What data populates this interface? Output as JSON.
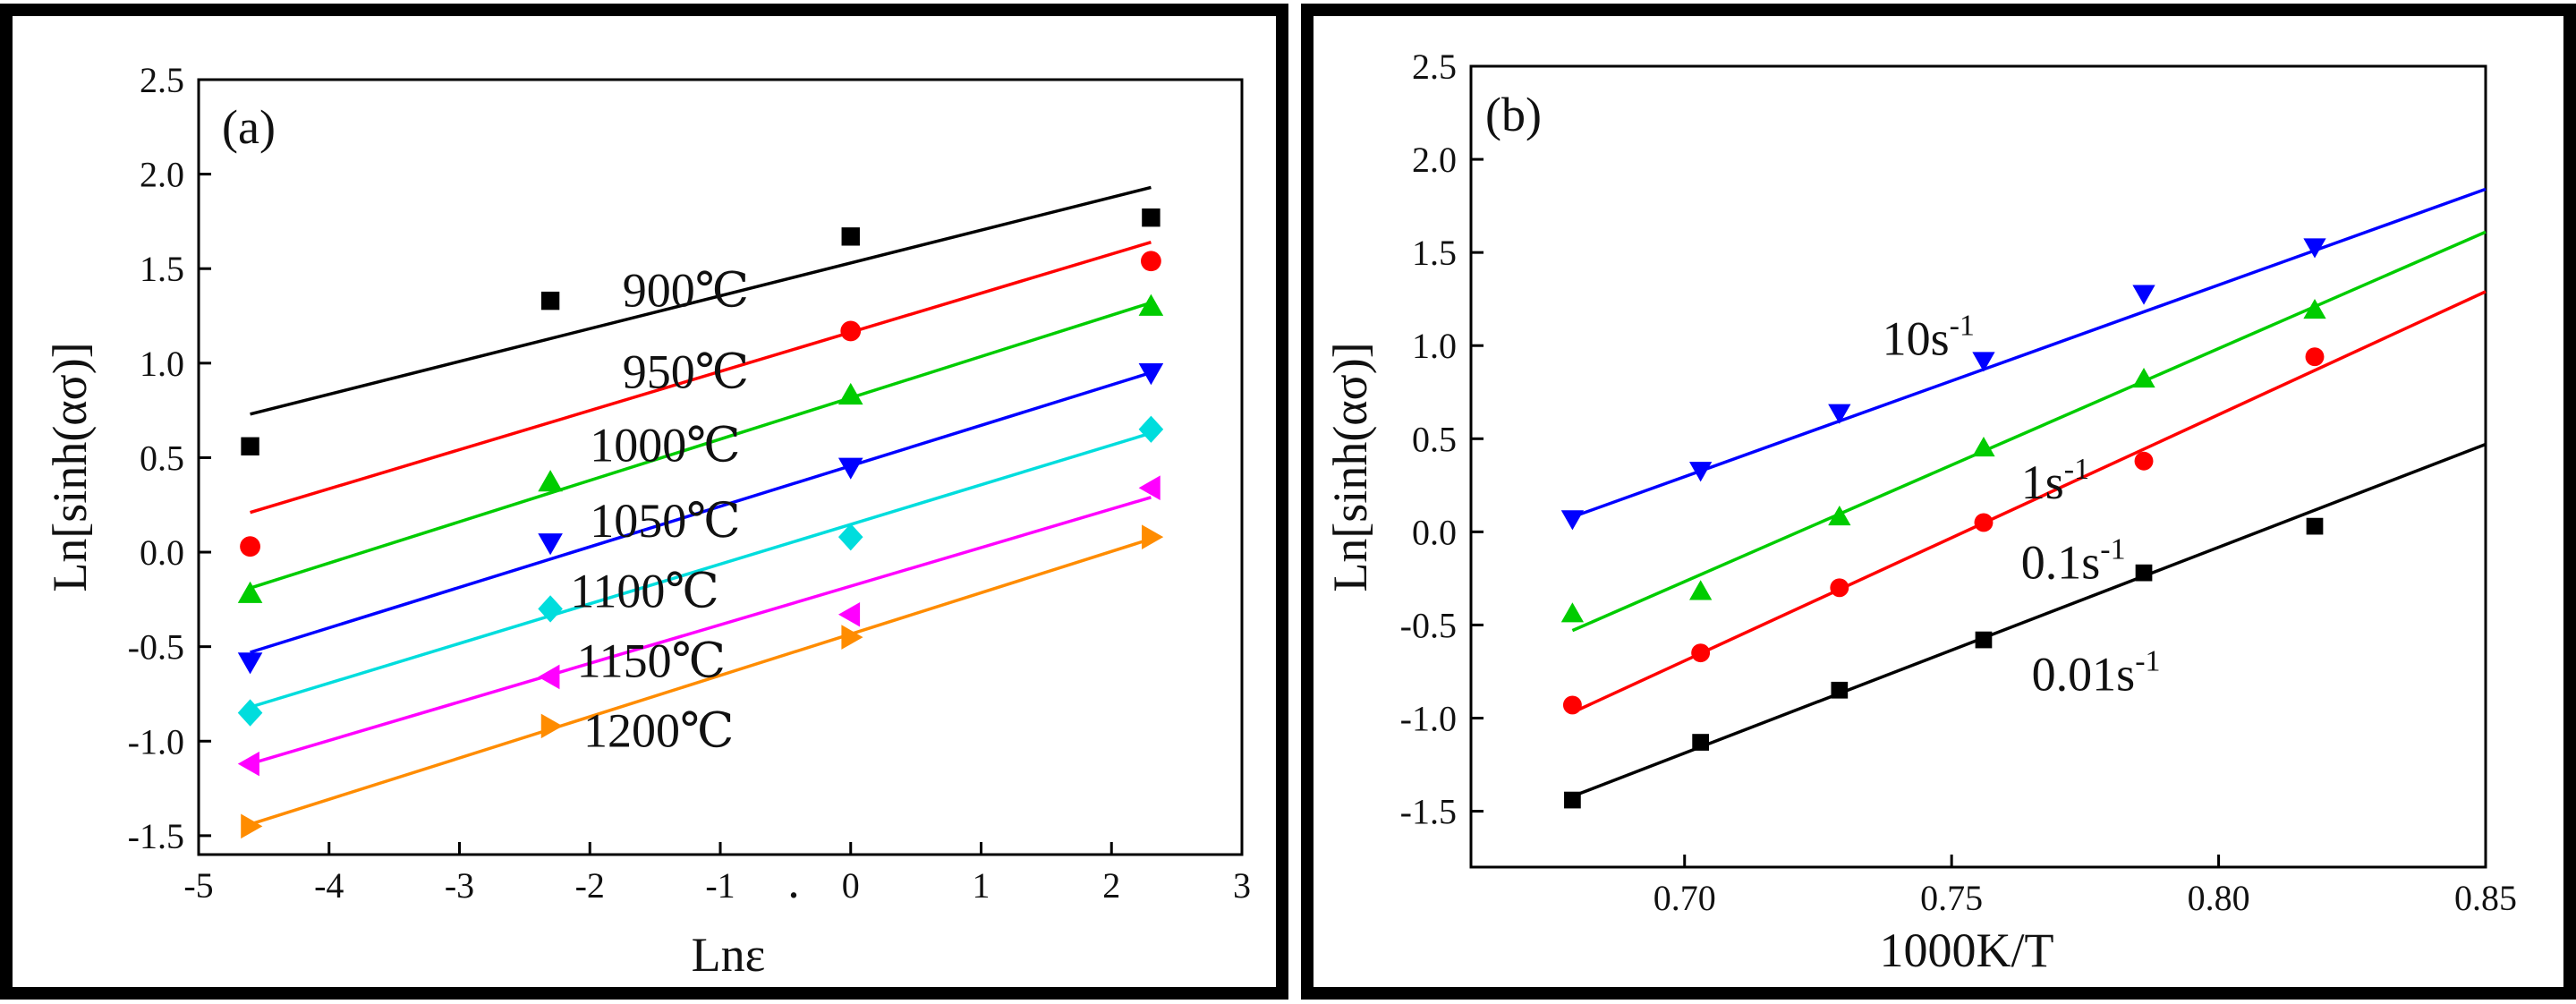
{
  "chart_data": [
    {
      "type": "scatter",
      "panel_label": "(a)",
      "xlabel": "Lnε",
      "xlabel_dot": "·",
      "ylabel": "Ln[sinh(ασ)]",
      "xlim": [
        -5,
        3
      ],
      "ylim": [
        -1.6,
        2.5
      ],
      "xticks": [
        -5,
        -4,
        -3,
        -2,
        -1,
        0,
        1,
        2,
        3
      ],
      "xtick_labels": [
        "-5",
        "-4",
        "-3",
        "-2",
        "-1",
        "0",
        "1",
        "2",
        "3"
      ],
      "yticks": [
        -1.5,
        -1.0,
        -0.5,
        0.0,
        0.5,
        1.0,
        1.5,
        2.0,
        2.5
      ],
      "ytick_labels": [
        "-1.5",
        "-1.0",
        "-0.5",
        "0.0",
        "0.5",
        "1.0",
        "1.5",
        "2.0",
        "2.5"
      ],
      "grid": false,
      "series": [
        {
          "name": "900℃",
          "label": "900℃",
          "color": "#000000",
          "marker": "square",
          "x": [
            -4.605,
            -2.303,
            0,
            2.303
          ],
          "y": [
            0.56,
            1.33,
            1.67,
            1.77
          ],
          "fit_x": [
            -4.605,
            2.303
          ],
          "fit_y": [
            0.73,
            1.93
          ],
          "label_x": -1.75,
          "label_y": 1.3
        },
        {
          "name": "950℃",
          "label": "950℃",
          "color": "#ff0000",
          "marker": "circle",
          "x": [
            -4.605,
            0,
            2.303
          ],
          "y": [
            0.03,
            1.17,
            1.54
          ],
          "fit_x": [
            -4.605,
            2.303
          ],
          "fit_y": [
            0.21,
            1.64
          ],
          "label_x": -1.75,
          "label_y": 0.87
        },
        {
          "name": "1000℃",
          "label": "1000℃",
          "color": "#00cc00",
          "marker": "triangle-up",
          "x": [
            -4.605,
            -2.303,
            0,
            2.303
          ],
          "y": [
            -0.22,
            0.37,
            0.83,
            1.3
          ],
          "fit_x": [
            -4.605,
            2.303
          ],
          "fit_y": [
            -0.19,
            1.32
          ],
          "label_x": -2.0,
          "label_y": 0.48
        },
        {
          "name": "1050℃",
          "label": "1050℃",
          "color": "#0000ff",
          "marker": "triangle-down",
          "x": [
            -4.605,
            -2.303,
            0,
            2.303
          ],
          "y": [
            -0.58,
            0.05,
            0.45,
            0.95
          ],
          "fit_x": [
            -4.605,
            2.303
          ],
          "fit_y": [
            -0.53,
            0.95
          ],
          "label_x": -2.0,
          "label_y": 0.08
        },
        {
          "name": "1100℃",
          "label": "1100℃",
          "color": "#00dddd",
          "marker": "diamond",
          "x": [
            -4.605,
            -2.303,
            0,
            2.303
          ],
          "y": [
            -0.85,
            -0.3,
            0.08,
            0.65
          ],
          "fit_x": [
            -4.605,
            2.303
          ],
          "fit_y": [
            -0.82,
            0.63
          ],
          "label_x": -2.15,
          "label_y": -0.29
        },
        {
          "name": "1150℃",
          "label": "1150℃",
          "color": "#ff00ff",
          "marker": "triangle-left",
          "x": [
            -4.605,
            -2.303,
            0,
            2.303
          ],
          "y": [
            -1.12,
            -0.66,
            -0.33,
            0.34
          ],
          "fit_x": [
            -4.605,
            2.303
          ],
          "fit_y": [
            -1.12,
            0.29
          ],
          "label_x": -2.1,
          "label_y": -0.66
        },
        {
          "name": "1200℃",
          "label": "1200℃",
          "color": "#ff8c00",
          "marker": "triangle-right",
          "x": [
            -4.605,
            -2.303,
            0,
            2.303
          ],
          "y": [
            -1.45,
            -0.92,
            -0.45,
            0.08
          ],
          "fit_x": [
            -4.605,
            2.303
          ],
          "fit_y": [
            -1.44,
            0.07
          ],
          "label_x": -2.05,
          "label_y": -1.03
        }
      ]
    },
    {
      "type": "scatter",
      "panel_label": "(b)",
      "xlabel": "1000K/T",
      "ylabel": "Ln[sinh(ασ)]",
      "xlim": [
        0.66,
        0.85
      ],
      "ylim": [
        -1.8,
        2.5
      ],
      "xticks": [
        0.7,
        0.75,
        0.8,
        0.85
      ],
      "xtick_labels": [
        "0.70",
        "0.75",
        "0.80",
        "0.85"
      ],
      "yticks": [
        -1.5,
        -1.0,
        -0.5,
        0.0,
        0.5,
        1.0,
        1.5,
        2.0,
        2.5
      ],
      "ytick_labels": [
        "-1.5",
        "-1.0",
        "-0.5",
        "0.0",
        "0.5",
        "1.0",
        "1.5",
        "2.0",
        "2.5"
      ],
      "grid": false,
      "series": [
        {
          "name": "0.01s-1",
          "label_base": "0.01s",
          "label_sup": "-1",
          "color": "#000000",
          "marker": "square",
          "x": [
            0.679,
            0.703,
            0.729,
            0.756,
            0.786,
            0.818
          ],
          "y": [
            -1.44,
            -1.13,
            -0.85,
            -0.58,
            -0.22,
            0.03
          ],
          "fit_x": [
            0.679,
            0.85
          ],
          "fit_y": [
            -1.42,
            0.47
          ],
          "label_x": 0.765,
          "label_y": -0.85
        },
        {
          "name": "0.1s-1",
          "label_base": "0.1s",
          "label_sup": "-1",
          "color": "#ff0000",
          "marker": "circle",
          "x": [
            0.679,
            0.703,
            0.729,
            0.756,
            0.786,
            0.818
          ],
          "y": [
            -0.93,
            -0.65,
            -0.3,
            0.05,
            0.38,
            0.94
          ],
          "fit_x": [
            0.679,
            0.85
          ],
          "fit_y": [
            -0.97,
            1.29
          ],
          "label_x": 0.763,
          "label_y": -0.25
        },
        {
          "name": "1s-1",
          "label_base": "1s",
          "label_sup": "-1",
          "color": "#00cc00",
          "marker": "triangle-up",
          "x": [
            0.679,
            0.703,
            0.729,
            0.756,
            0.786,
            0.818
          ],
          "y": [
            -0.44,
            -0.32,
            0.08,
            0.45,
            0.82,
            1.19
          ],
          "fit_x": [
            0.679,
            0.85
          ],
          "fit_y": [
            -0.53,
            1.61
          ],
          "label_x": 0.763,
          "label_y": 0.18
        },
        {
          "name": "10s-1",
          "label_base": "10s",
          "label_sup": "-1",
          "color": "#0000ff",
          "marker": "triangle-down",
          "x": [
            0.679,
            0.703,
            0.729,
            0.756,
            0.786,
            0.818
          ],
          "y": [
            0.07,
            0.33,
            0.64,
            0.92,
            1.28,
            1.53
          ],
          "fit_x": [
            0.679,
            0.85
          ],
          "fit_y": [
            0.08,
            1.84
          ],
          "label_x": 0.737,
          "label_y": 0.95
        }
      ]
    }
  ]
}
